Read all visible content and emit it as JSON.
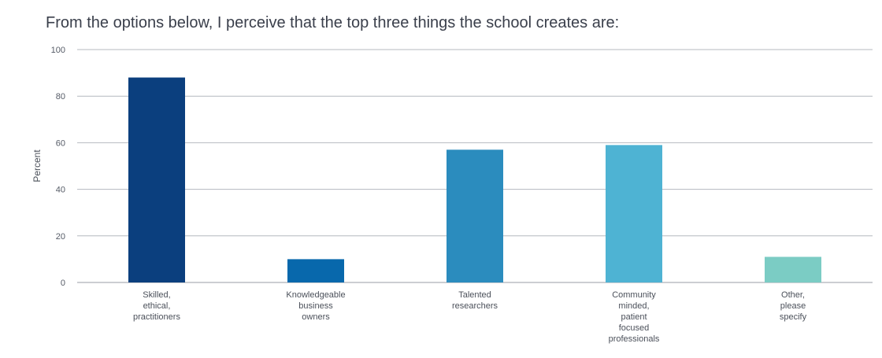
{
  "chart_data": {
    "type": "bar",
    "title": "From the options below, I perceive that the top three things the school creates are:",
    "xlabel": "",
    "ylabel": "Percent",
    "ylim": [
      0,
      100
    ],
    "yticks": [
      0,
      20,
      40,
      60,
      80,
      100
    ],
    "grid": true,
    "categories": [
      [
        "Skilled,",
        "ethical,",
        "practitioners"
      ],
      [
        "Knowledgeable",
        "business",
        "owners"
      ],
      [
        "Talented",
        "researchers"
      ],
      [
        "Community",
        "minded,",
        "patient",
        "focused",
        "professionals"
      ],
      [
        "Other,",
        "please",
        "specify"
      ]
    ],
    "values": [
      88,
      10,
      57,
      59,
      11
    ],
    "colors": [
      "#0b3f7e",
      "#0868ac",
      "#2b8cbe",
      "#4eb3d3",
      "#7bccc4"
    ]
  }
}
